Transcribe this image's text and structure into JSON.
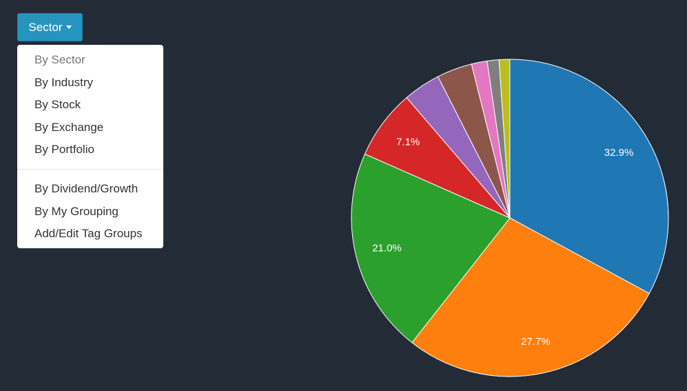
{
  "dropdown": {
    "button": "Sector",
    "groups": [
      [
        "By Sector",
        "By Industry",
        "By Stock",
        "By Exchange",
        "By Portfolio"
      ],
      [
        "By Dividend/Growth",
        "By My Grouping",
        "Add/Edit Tag Groups"
      ]
    ]
  },
  "chart_data": {
    "type": "pie",
    "values": [
      32.9,
      27.7,
      21.0,
      7.1,
      3.8,
      3.6,
      1.6,
      1.2,
      1.1
    ],
    "value_labels": [
      "32.9%",
      "27.7%",
      "21.0%",
      "7.1%",
      null,
      null,
      null,
      null,
      null
    ],
    "colors": [
      "#1f77b4",
      "#ff7f0e",
      "#2ca02c",
      "#d62728",
      "#9467bd",
      "#8c564b",
      "#e377c2",
      "#7f7f7f",
      "#bcbd22"
    ]
  }
}
